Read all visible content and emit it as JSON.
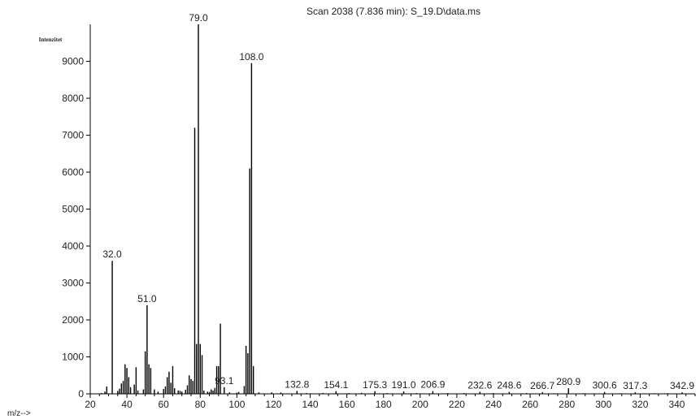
{
  "chart_data": {
    "type": "bar",
    "title": "Scan 2038 (7.836 min): S_19.D\\data.ms",
    "ylabel": "Intenzitet",
    "xlabel": "m/z-->",
    "xlim": [
      20,
      350
    ],
    "ylim": [
      0,
      10000
    ],
    "xticks": [
      20,
      40,
      60,
      80,
      100,
      120,
      140,
      160,
      180,
      200,
      220,
      240,
      260,
      280,
      300,
      320,
      340
    ],
    "yticks": [
      0,
      1000,
      2000,
      3000,
      4000,
      5000,
      6000,
      7000,
      8000,
      9000
    ],
    "grid": false,
    "x": [
      26,
      28,
      29,
      32,
      35,
      36,
      37,
      38,
      39,
      40,
      41,
      42,
      44,
      45,
      46,
      49,
      50,
      51,
      52,
      53,
      55,
      57,
      60,
      61,
      62,
      63,
      64,
      65,
      66,
      68,
      69,
      70,
      72,
      73,
      74,
      75,
      76,
      77,
      78,
      79,
      80,
      81,
      82,
      84,
      85,
      86,
      87,
      88,
      89,
      90,
      91,
      93.1,
      96,
      100,
      101,
      104,
      105,
      106,
      107,
      108,
      109,
      112,
      119,
      124,
      132.8,
      138,
      147,
      154.1,
      161,
      168,
      175.3,
      182,
      191.0,
      198,
      206.9,
      215,
      224,
      232.6,
      240,
      248.6,
      258,
      266.7,
      273,
      280.9,
      289,
      300.6,
      309,
      317.3,
      328,
      335,
      342.9
    ],
    "values": [
      20,
      60,
      200,
      3600,
      80,
      140,
      280,
      350,
      800,
      700,
      450,
      180,
      250,
      720,
      90,
      120,
      1150,
      2400,
      800,
      700,
      120,
      60,
      130,
      200,
      450,
      600,
      300,
      750,
      150,
      90,
      80,
      60,
      110,
      230,
      500,
      400,
      350,
      7200,
      1350,
      10000,
      1350,
      1050,
      90,
      60,
      50,
      120,
      90,
      160,
      750,
      750,
      1900,
      180,
      40,
      30,
      50,
      210,
      1300,
      1100,
      6100,
      8950,
      750,
      40,
      40,
      35,
      80,
      20,
      25,
      70,
      20,
      25,
      70,
      20,
      65,
      20,
      75,
      20,
      20,
      55,
      20,
      50,
      20,
      45,
      15,
      150,
      15,
      50,
      15,
      40,
      15,
      15,
      40
    ],
    "peak_labels": [
      {
        "x": 32,
        "text": "32.0"
      },
      {
        "x": 51,
        "text": "51.0"
      },
      {
        "x": 79,
        "text": "79.0"
      },
      {
        "x": 108,
        "text": "108.0"
      },
      {
        "x": 93.1,
        "text": "93.1"
      },
      {
        "x": 132.8,
        "text": "132.8"
      },
      {
        "x": 154.1,
        "text": "154.1"
      },
      {
        "x": 175.3,
        "text": "175.3"
      },
      {
        "x": 191.0,
        "text": "191.0"
      },
      {
        "x": 206.9,
        "text": "206.9"
      },
      {
        "x": 232.6,
        "text": "232.6"
      },
      {
        "x": 248.6,
        "text": "248.6"
      },
      {
        "x": 266.7,
        "text": "266.7"
      },
      {
        "x": 280.9,
        "text": "280.9"
      },
      {
        "x": 300.6,
        "text": "300.6"
      },
      {
        "x": 317.3,
        "text": "317.3"
      },
      {
        "x": 342.9,
        "text": "342.9"
      }
    ]
  }
}
